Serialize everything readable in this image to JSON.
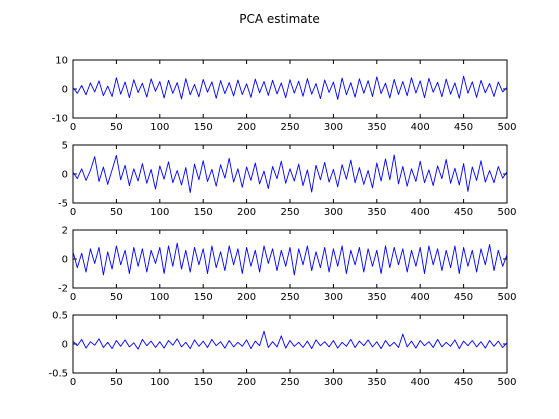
{
  "figure": {
    "title": "PCA estimate"
  },
  "colors": {
    "line": "#0000ff",
    "axes": "#000000",
    "background": "#ffffff"
  },
  "chart_data": [
    {
      "type": "line",
      "title": "",
      "xlabel": "",
      "ylabel": "",
      "xlim": [
        0,
        500
      ],
      "ylim": [
        -10,
        10
      ],
      "xticks": [
        0,
        50,
        100,
        150,
        200,
        250,
        300,
        350,
        400,
        450,
        500
      ],
      "yticks": [
        -10,
        0,
        10
      ],
      "grid": false,
      "series": [
        {
          "color": "#0000ff",
          "x": [
            0,
            5,
            10,
            15,
            20,
            25,
            30,
            35,
            40,
            45,
            50,
            55,
            60,
            65,
            70,
            75,
            80,
            85,
            90,
            95,
            100,
            105,
            110,
            115,
            120,
            125,
            130,
            135,
            140,
            145,
            150,
            155,
            160,
            165,
            170,
            175,
            180,
            185,
            190,
            195,
            200,
            205,
            210,
            215,
            220,
            225,
            230,
            235,
            240,
            245,
            250,
            255,
            260,
            265,
            270,
            275,
            280,
            285,
            290,
            295,
            300,
            305,
            310,
            315,
            320,
            325,
            330,
            335,
            340,
            345,
            350,
            355,
            360,
            365,
            370,
            375,
            380,
            385,
            390,
            395,
            400,
            405,
            410,
            415,
            420,
            425,
            430,
            435,
            440,
            445,
            450,
            455,
            460,
            465,
            470,
            475,
            480,
            485,
            490,
            495,
            500
          ],
          "values": [
            0.5,
            -1.5,
            1.2,
            -2.0,
            2.1,
            -1.0,
            2.8,
            -2.3,
            1.0,
            -2.6,
            3.9,
            -1.8,
            2.4,
            -3.0,
            3.2,
            -1.2,
            2.0,
            -2.8,
            3.5,
            -0.8,
            2.6,
            -3.1,
            3.0,
            -1.5,
            2.2,
            -3.4,
            3.6,
            -2.0,
            1.6,
            -2.7,
            3.3,
            -1.1,
            2.5,
            -3.2,
            2.9,
            -1.6,
            2.2,
            -2.4,
            3.1,
            -1.9,
            1.8,
            -2.9,
            3.4,
            -1.3,
            2.6,
            -2.2,
            3.0,
            -1.7,
            2.1,
            -3.0,
            3.2,
            -1.4,
            2.7,
            -2.5,
            3.6,
            -1.8,
            1.9,
            -3.3,
            3.1,
            -1.2,
            2.4,
            -3.6,
            3.8,
            -2.0,
            2.2,
            -2.8,
            3.5,
            -1.5,
            2.9,
            -2.6,
            4.2,
            -1.6,
            2.0,
            -3.1,
            3.3,
            -1.9,
            2.6,
            -2.3,
            3.9,
            -1.4,
            2.8,
            -3.0,
            3.7,
            -1.1,
            2.3,
            -2.7,
            3.4,
            -1.8,
            2.1,
            -3.2,
            4.4,
            -1.5,
            2.5,
            -2.9,
            3.0,
            -1.3,
            1.9,
            -2.6,
            2.4,
            -1.0,
            0.6
          ]
        }
      ]
    },
    {
      "type": "line",
      "title": "",
      "xlabel": "",
      "ylabel": "",
      "xlim": [
        0,
        500
      ],
      "ylim": [
        -5,
        5
      ],
      "xticks": [
        0,
        50,
        100,
        150,
        200,
        250,
        300,
        350,
        400,
        450,
        500
      ],
      "yticks": [
        -5,
        0,
        5
      ],
      "grid": false,
      "series": [
        {
          "color": "#0000ff",
          "x": [
            0,
            5,
            10,
            15,
            20,
            25,
            30,
            35,
            40,
            45,
            50,
            55,
            60,
            65,
            70,
            75,
            80,
            85,
            90,
            95,
            100,
            105,
            110,
            115,
            120,
            125,
            130,
            135,
            140,
            145,
            150,
            155,
            160,
            165,
            170,
            175,
            180,
            185,
            190,
            195,
            200,
            205,
            210,
            215,
            220,
            225,
            230,
            235,
            240,
            245,
            250,
            255,
            260,
            265,
            270,
            275,
            280,
            285,
            290,
            295,
            300,
            305,
            310,
            315,
            320,
            325,
            330,
            335,
            340,
            345,
            350,
            355,
            360,
            365,
            370,
            375,
            380,
            385,
            390,
            395,
            400,
            405,
            410,
            415,
            420,
            425,
            430,
            435,
            440,
            445,
            450,
            455,
            460,
            465,
            470,
            475,
            480,
            485,
            490,
            495,
            500
          ],
          "values": [
            0.3,
            -0.8,
            0.9,
            -1.1,
            0.6,
            3.0,
            -1.3,
            1.2,
            -1.8,
            0.7,
            3.2,
            -1.0,
            1.5,
            -2.0,
            0.9,
            -1.2,
            1.8,
            -1.6,
            0.8,
            -2.6,
            1.4,
            -0.9,
            2.1,
            -1.5,
            0.6,
            -1.9,
            1.1,
            -3.2,
            1.7,
            -1.0,
            2.3,
            -1.3,
            0.8,
            -2.1,
            1.6,
            -0.7,
            2.7,
            -1.4,
            0.9,
            -2.3,
            1.2,
            -1.1,
            1.9,
            -1.7,
            0.5,
            -2.5,
            1.3,
            -0.8,
            2.2,
            -1.6,
            0.9,
            -1.2,
            1.7,
            -2.0,
            0.7,
            -3.1,
            1.5,
            -1.0,
            2.0,
            -1.4,
            0.8,
            -2.2,
            1.6,
            -0.9,
            2.4,
            -1.5,
            1.1,
            -1.8,
            0.6,
            -2.4,
            1.9,
            -1.2,
            2.6,
            -1.0,
            3.3,
            -1.7,
            1.3,
            -2.1,
            0.9,
            -1.3,
            2.2,
            -1.5,
            0.7,
            -2.0,
            1.4,
            -0.8,
            2.5,
            -1.6,
            1.0,
            -1.9,
            1.8,
            -3.0,
            1.2,
            -1.1,
            2.3,
            -1.4,
            0.6,
            -1.5,
            1.3,
            -0.7,
            0.4
          ]
        }
      ]
    },
    {
      "type": "line",
      "title": "",
      "xlabel": "",
      "ylabel": "",
      "xlim": [
        0,
        500
      ],
      "ylim": [
        -2,
        2
      ],
      "xticks": [
        0,
        50,
        100,
        150,
        200,
        250,
        300,
        350,
        400,
        450,
        500
      ],
      "yticks": [
        -2,
        0,
        2
      ],
      "grid": false,
      "series": [
        {
          "color": "#0000ff",
          "x": [
            0,
            5,
            10,
            15,
            20,
            25,
            30,
            35,
            40,
            45,
            50,
            55,
            60,
            65,
            70,
            75,
            80,
            85,
            90,
            95,
            100,
            105,
            110,
            115,
            120,
            125,
            130,
            135,
            140,
            145,
            150,
            155,
            160,
            165,
            170,
            175,
            180,
            185,
            190,
            195,
            200,
            205,
            210,
            215,
            220,
            225,
            230,
            235,
            240,
            245,
            250,
            255,
            260,
            265,
            270,
            275,
            280,
            285,
            290,
            295,
            300,
            305,
            310,
            315,
            320,
            325,
            330,
            335,
            340,
            345,
            350,
            355,
            360,
            365,
            370,
            375,
            380,
            385,
            390,
            395,
            400,
            405,
            410,
            415,
            420,
            425,
            430,
            435,
            440,
            445,
            450,
            455,
            460,
            465,
            470,
            475,
            480,
            485,
            490,
            495,
            500
          ],
          "values": [
            0.5,
            -0.6,
            0.4,
            -0.9,
            0.7,
            -0.3,
            0.8,
            -1.1,
            0.5,
            -0.7,
            0.9,
            -0.4,
            0.6,
            -1.0,
            0.8,
            -0.5,
            0.7,
            -0.9,
            0.6,
            -0.3,
            0.8,
            -1.0,
            0.9,
            -0.5,
            1.1,
            -0.7,
            0.6,
            -0.9,
            0.8,
            -0.4,
            0.7,
            -1.0,
            0.9,
            -0.6,
            0.5,
            -0.8,
            0.9,
            -0.4,
            0.7,
            -1.0,
            0.8,
            -0.5,
            0.6,
            -0.9,
            0.9,
            -0.3,
            0.7,
            -0.8,
            0.6,
            -0.5,
            0.8,
            -1.1,
            0.7,
            -0.4,
            0.9,
            -0.8,
            0.5,
            -0.6,
            0.8,
            -0.9,
            0.7,
            -0.5,
            0.9,
            -1.0,
            0.6,
            -0.4,
            0.8,
            -0.9,
            0.7,
            -0.5,
            0.6,
            -1.0,
            0.9,
            -0.6,
            0.8,
            -0.4,
            0.7,
            -0.9,
            0.6,
            -0.5,
            0.8,
            -1.0,
            0.9,
            -0.4,
            0.7,
            -0.8,
            0.6,
            -0.6,
            0.9,
            -1.0,
            0.8,
            -0.5,
            0.6,
            -0.9,
            0.7,
            -0.4,
            1.0,
            -0.8,
            0.6,
            -0.5,
            0.3
          ]
        }
      ]
    },
    {
      "type": "line",
      "title": "",
      "xlabel": "",
      "ylabel": "",
      "xlim": [
        0,
        500
      ],
      "ylim": [
        -0.5,
        0.5
      ],
      "xticks": [
        0,
        50,
        100,
        150,
        200,
        250,
        300,
        350,
        400,
        450,
        500
      ],
      "yticks": [
        -0.5,
        0,
        0.5
      ],
      "grid": false,
      "series": [
        {
          "color": "#0000ff",
          "x": [
            0,
            5,
            10,
            15,
            20,
            25,
            30,
            35,
            40,
            45,
            50,
            55,
            60,
            65,
            70,
            75,
            80,
            85,
            90,
            95,
            100,
            105,
            110,
            115,
            120,
            125,
            130,
            135,
            140,
            145,
            150,
            155,
            160,
            165,
            170,
            175,
            180,
            185,
            190,
            195,
            200,
            205,
            210,
            215,
            220,
            225,
            230,
            235,
            240,
            245,
            250,
            255,
            260,
            265,
            270,
            275,
            280,
            285,
            290,
            295,
            300,
            305,
            310,
            315,
            320,
            325,
            330,
            335,
            340,
            345,
            350,
            355,
            360,
            365,
            370,
            375,
            380,
            385,
            390,
            395,
            400,
            405,
            410,
            415,
            420,
            425,
            430,
            435,
            440,
            445,
            450,
            455,
            460,
            465,
            470,
            475,
            480,
            485,
            490,
            495,
            500
          ],
          "values": [
            0.05,
            -0.03,
            0.08,
            -0.07,
            0.04,
            -0.02,
            0.09,
            -0.06,
            0.03,
            -0.08,
            0.06,
            -0.04,
            0.07,
            -0.05,
            0.02,
            -0.09,
            0.08,
            -0.03,
            0.05,
            -0.06,
            0.04,
            -0.07,
            0.06,
            -0.02,
            0.09,
            -0.05,
            0.03,
            -0.08,
            0.07,
            -0.04,
            0.05,
            -0.06,
            0.08,
            -0.03,
            0.04,
            -0.07,
            0.06,
            -0.05,
            0.03,
            -0.04,
            0.07,
            -0.08,
            0.05,
            -0.03,
            0.22,
            -0.06,
            0.04,
            -0.05,
            0.14,
            -0.07,
            0.06,
            -0.04,
            0.03,
            -0.06,
            0.05,
            -0.08,
            0.07,
            -0.03,
            0.04,
            -0.05,
            0.06,
            -0.07,
            0.03,
            -0.04,
            0.08,
            -0.06,
            0.05,
            -0.03,
            0.07,
            -0.05,
            0.04,
            -0.08,
            0.06,
            -0.04,
            0.03,
            -0.06,
            0.17,
            -0.05,
            0.05,
            -0.07,
            0.06,
            -0.03,
            0.04,
            -0.06,
            0.08,
            -0.05,
            0.03,
            -0.04,
            0.07,
            -0.08,
            0.05,
            -0.03,
            0.06,
            -0.05,
            0.04,
            -0.07,
            0.06,
            -0.04,
            0.05,
            -0.06,
            0.02
          ]
        }
      ]
    }
  ]
}
